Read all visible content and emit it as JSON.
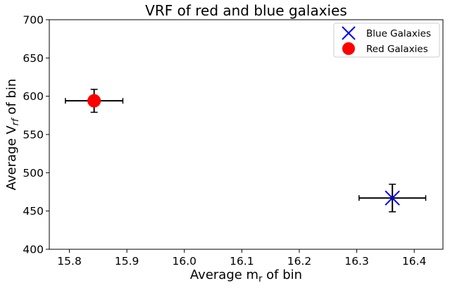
{
  "chart_data": {
    "type": "scatter",
    "title": "VRF of red and blue galaxies",
    "xlabel": {
      "pre": "Average m",
      "sub": "r",
      "post": " of bin"
    },
    "ylabel": {
      "pre": "Average V",
      "sub": "rf",
      "post": " of bin"
    },
    "xlim": [
      15.765,
      16.45
    ],
    "ylim": [
      400,
      700
    ],
    "xticks": [
      15.8,
      15.9,
      16.0,
      16.1,
      16.2,
      16.3,
      16.4
    ],
    "xtick_labels": [
      "15.8",
      "15.9",
      "16.0",
      "16.1",
      "16.2",
      "16.3",
      "16.4"
    ],
    "yticks": [
      400,
      450,
      500,
      550,
      600,
      650,
      700
    ],
    "ytick_labels": [
      "400",
      "450",
      "500",
      "550",
      "600",
      "650",
      "700"
    ],
    "grid": false,
    "legend_position": "top-right",
    "series": [
      {
        "name": "Blue Galaxies",
        "marker": "x",
        "color": "#0000ff",
        "points": [
          {
            "x": 16.362,
            "y": 467,
            "xerr": 0.058,
            "yerr": 18
          }
        ]
      },
      {
        "name": "Red Galaxies",
        "marker": "circle",
        "color": "#ff0000",
        "points": [
          {
            "x": 15.843,
            "y": 594,
            "xerr": 0.05,
            "yerr": 15
          }
        ]
      }
    ]
  }
}
